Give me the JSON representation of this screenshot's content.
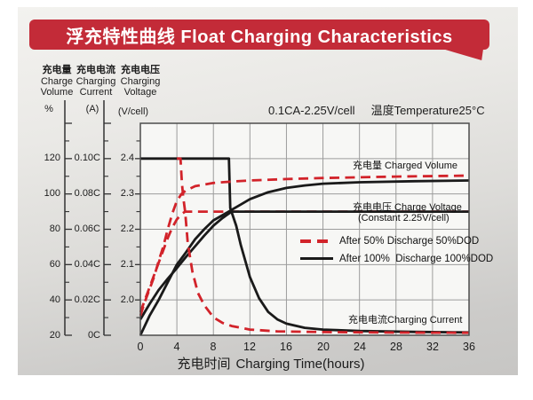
{
  "title": "浮充特性曲线 Float Charging Characteristics",
  "conditions": {
    "rate": "0.1CA-2.25V/cell",
    "temp": "温度Temperature25°C"
  },
  "colors": {
    "banner": "#c32b38",
    "curve_red": "#d2232a",
    "curve_black": "#1a1a1a",
    "grid": "#9c9c9c",
    "plot_border": "#4d4d4d",
    "plot_bg": "#f7f7f5"
  },
  "chart_data": {
    "type": "line",
    "x_axis": {
      "cn": "充电时间",
      "en": "Charging Time(hours)",
      "ticks": [
        0,
        4,
        8,
        12,
        16,
        20,
        24,
        28,
        32,
        36
      ],
      "range": [
        0,
        36
      ]
    },
    "y_axes": [
      {
        "name": "charge-volume",
        "cn": "充电量",
        "en": [
          "Charge",
          "Volume"
        ],
        "unit": "%",
        "ticks": [
          "120",
          "100",
          "80",
          "60",
          "40",
          "20"
        ],
        "range": [
          20,
          130
        ]
      },
      {
        "name": "charging-current",
        "cn": "充电电流",
        "en": [
          "Charging",
          "Current"
        ],
        "unit": "(A)",
        "ticks": [
          "0.10C",
          "0.08C",
          "0.06C",
          "0.04C",
          "0.02C",
          "0C"
        ],
        "range": [
          0,
          0.11
        ]
      },
      {
        "name": "charging-voltage",
        "cn": "充电电压",
        "en": [
          "Charging",
          "Voltage"
        ],
        "unit": "(V/cell)",
        "ticks": [
          "2.4",
          "2.3",
          "2.2",
          "2.1",
          "2.0"
        ],
        "range": [
          1.9,
          2.5
        ]
      }
    ],
    "grid": true,
    "legend": [
      {
        "label": "After 50% Discharge 50%DOD",
        "style": "dashed",
        "color": "#d2232a"
      },
      {
        "label": "After 100%  Discharge 100%DOD",
        "style": "solid",
        "color": "#1a1a1a"
      }
    ],
    "annotations": [
      {
        "text": "充电量 Charged Volume"
      },
      {
        "text": "充电电压 Charge Voltage"
      },
      {
        "text": "(Constant 2.25V/cell)"
      },
      {
        "text": "充电电流Charging Current"
      }
    ],
    "series": [
      {
        "name": "charge-voltage-50dod",
        "group": "After 50% Discharge 50%DOD",
        "unit": "V",
        "style": "dashed",
        "color": "#d2232a",
        "points": [
          [
            0,
            1.965
          ],
          [
            0.5,
            2.0
          ],
          [
            1,
            2.035
          ],
          [
            1.5,
            2.07
          ],
          [
            2,
            2.105
          ],
          [
            2.5,
            2.14
          ],
          [
            3,
            2.175
          ],
          [
            3.5,
            2.205
          ],
          [
            4,
            2.228
          ],
          [
            4.5,
            2.243
          ],
          [
            4.9,
            2.25
          ],
          [
            36,
            2.25
          ]
        ]
      },
      {
        "name": "charge-voltage-100dod",
        "group": "After 100% Discharge 100%DOD",
        "unit": "V",
        "style": "solid",
        "color": "#1a1a1a",
        "points": [
          [
            0,
            1.945
          ],
          [
            1,
            1.988
          ],
          [
            2,
            2.028
          ],
          [
            3,
            2.06
          ],
          [
            4,
            2.09
          ],
          [
            5,
            2.122
          ],
          [
            6,
            2.152
          ],
          [
            7,
            2.182
          ],
          [
            8,
            2.21
          ],
          [
            9,
            2.232
          ],
          [
            10,
            2.25
          ],
          [
            36,
            2.25
          ]
        ]
      },
      {
        "name": "charged-volume-100dod",
        "group": "After 100% Discharge 100%DOD",
        "unit": "%",
        "style": "solid",
        "color": "#1a1a1a",
        "points": [
          [
            0,
            20
          ],
          [
            1,
            31
          ],
          [
            2,
            40
          ],
          [
            3,
            50
          ],
          [
            4,
            60
          ],
          [
            5,
            67
          ],
          [
            6,
            74.4
          ],
          [
            7,
            80
          ],
          [
            8,
            85
          ],
          [
            9,
            88
          ],
          [
            10,
            91
          ],
          [
            11,
            94
          ],
          [
            12,
            97
          ],
          [
            14,
            101
          ],
          [
            16,
            103.4
          ],
          [
            18,
            104.8
          ],
          [
            20,
            105.8
          ],
          [
            24,
            106.6
          ],
          [
            30,
            107.2
          ],
          [
            36,
            107.6
          ]
        ]
      },
      {
        "name": "charging-current-100dod",
        "group": "After 100% Discharge 100%DOD",
        "unit": "C",
        "style": "solid",
        "color": "#1a1a1a",
        "points": [
          [
            0,
            0.1
          ],
          [
            9.7,
            0.1
          ],
          [
            9.85,
            0.072
          ],
          [
            10.5,
            0.062
          ],
          [
            11,
            0.051
          ],
          [
            12,
            0.033
          ],
          [
            13,
            0.021
          ],
          [
            14,
            0.0132
          ],
          [
            15,
            0.009
          ],
          [
            16,
            0.0066
          ],
          [
            18,
            0.0042
          ],
          [
            20,
            0.0032
          ],
          [
            24,
            0.0024
          ],
          [
            30,
            0.0019
          ],
          [
            36,
            0.0016
          ]
        ]
      },
      {
        "name": "charged-volume-50dod",
        "group": "After 50% Discharge 50%DOD",
        "unit": "%",
        "style": "dashed",
        "color": "#d2232a",
        "points": [
          [
            0,
            31
          ],
          [
            0.5,
            39
          ],
          [
            1,
            46
          ],
          [
            1.5,
            53
          ],
          [
            2,
            62
          ],
          [
            2.5,
            70
          ],
          [
            3,
            80
          ],
          [
            3.5,
            89
          ],
          [
            4,
            96
          ],
          [
            4.5,
            100
          ],
          [
            5,
            102
          ],
          [
            6,
            104.4
          ],
          [
            8,
            106.2
          ],
          [
            10,
            107
          ],
          [
            12,
            107.6
          ],
          [
            16,
            108.4
          ],
          [
            20,
            109
          ],
          [
            28,
            109.8
          ],
          [
            36,
            110.4
          ]
        ]
      },
      {
        "name": "charging-current-50dod",
        "group": "After 50% Discharge 50%DOD",
        "unit": "C",
        "style": "dashed",
        "color": "#d2232a",
        "points": [
          [
            4.0,
            0.1
          ],
          [
            4.4,
            0.1
          ],
          [
            4.55,
            0.086
          ],
          [
            4.7,
            0.078
          ],
          [
            4.9,
            0.07
          ],
          [
            5.2,
            0.052
          ],
          [
            5.7,
            0.036
          ],
          [
            6.3,
            0.024
          ],
          [
            7,
            0.017
          ],
          [
            8,
            0.0102
          ],
          [
            9,
            0.007
          ],
          [
            10,
            0.0052
          ],
          [
            12,
            0.0032
          ],
          [
            15,
            0.0022
          ],
          [
            20,
            0.0018
          ],
          [
            28,
            0.0015
          ],
          [
            36,
            0.0014
          ]
        ]
      }
    ]
  }
}
